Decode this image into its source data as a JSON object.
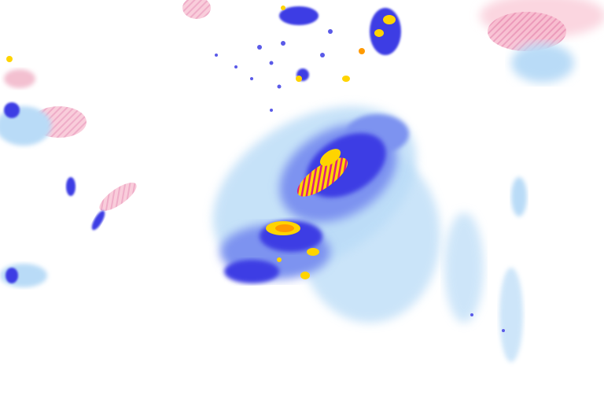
{
  "map": {
    "type": "precipitation-radar-overlay",
    "colors": {
      "background": "#ffffff",
      "light_rain": "#a8d0f5",
      "moderate_rain": "#6f8ff0",
      "heavy_rain": "#3a3ae0",
      "intense": "#ffd400",
      "extreme": "#ff9a00",
      "hatch": "#e0207a",
      "snow_mix": "#f7b8cc"
    }
  }
}
